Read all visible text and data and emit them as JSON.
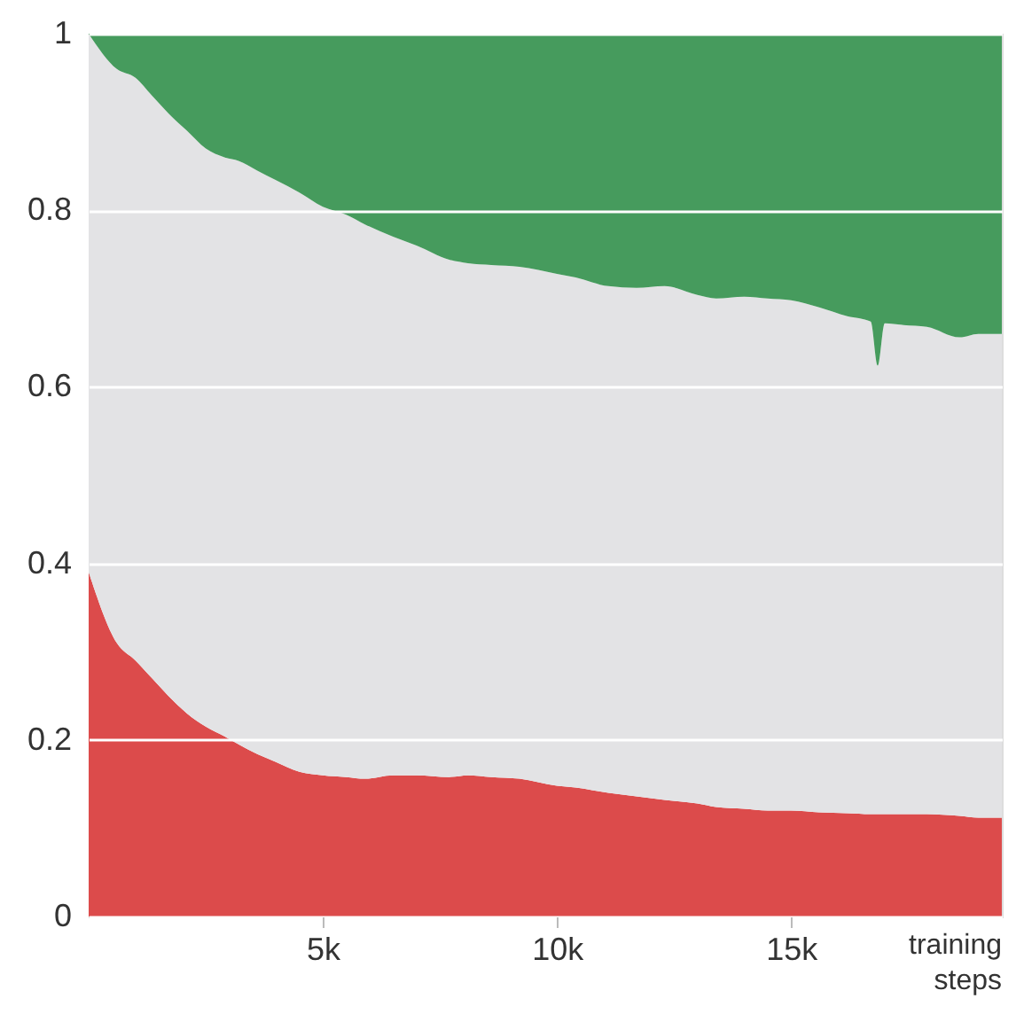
{
  "chart_data": {
    "type": "area",
    "stacked": true,
    "xlabel": "training steps",
    "x": [
      0,
      600,
      1000,
      1350,
      1700,
      2100,
      2500,
      2900,
      3200,
      3600,
      4000,
      4500,
      5000,
      5500,
      5900,
      6500,
      7000,
      7700,
      8100,
      8600,
      9200,
      10000,
      10400,
      11100,
      11700,
      12300,
      13000,
      13400,
      14000,
      14500,
      15000,
      15600,
      16200,
      16700,
      16850,
      17000,
      17400,
      17900,
      18600,
      19000,
      19500
    ],
    "series": [
      {
        "color": "#dc4b4b",
        "values": [
          0.39,
          0.31,
          0.29,
          0.27,
          0.25,
          0.23,
          0.215,
          0.204,
          0.195,
          0.184,
          0.175,
          0.164,
          0.16,
          0.158,
          0.156,
          0.16,
          0.16,
          0.158,
          0.16,
          0.158,
          0.156,
          0.148,
          0.146,
          0.14,
          0.136,
          0.132,
          0.128,
          0.124,
          0.122,
          0.12,
          0.12,
          0.118,
          0.117,
          0.116,
          0.116,
          0.116,
          0.116,
          0.116,
          0.114,
          0.112,
          0.112
        ]
      },
      {
        "color": "#e3e3e5",
        "values": [
          0.61,
          0.65,
          0.66,
          0.66,
          0.66,
          0.66,
          0.655,
          0.656,
          0.661,
          0.661,
          0.659,
          0.656,
          0.644,
          0.637,
          0.628,
          0.61,
          0.6,
          0.586,
          0.58,
          0.58,
          0.58,
          0.58,
          0.578,
          0.574,
          0.576,
          0.582,
          0.576,
          0.576,
          0.58,
          0.58,
          0.578,
          0.572,
          0.563,
          0.558,
          0.508,
          0.556,
          0.554,
          0.552,
          0.542,
          0.548,
          0.548
        ]
      },
      {
        "color": "#469b5d",
        "values": [
          0,
          0.04,
          0.05,
          0.07,
          0.09,
          0.11,
          0.13,
          0.14,
          0.144,
          0.155,
          0.166,
          0.18,
          0.196,
          0.205,
          0.216,
          0.23,
          0.24,
          0.256,
          0.26,
          0.262,
          0.264,
          0.272,
          0.276,
          0.286,
          0.288,
          0.286,
          0.296,
          0.3,
          0.298,
          0.3,
          0.302,
          0.31,
          0.32,
          0.326,
          0.376,
          0.328,
          0.33,
          0.332,
          0.344,
          0.34,
          0.34
        ]
      }
    ],
    "xlim": [
      0,
      19500
    ],
    "ylim": [
      0,
      1
    ],
    "xticks": [
      {
        "value": 5000,
        "label": "5k"
      },
      {
        "value": 10000,
        "label": "10k"
      },
      {
        "value": 15000,
        "label": "15k"
      }
    ],
    "yticks": [
      0,
      {
        "value": 0.2,
        "label": "0.2"
      },
      {
        "value": 0.4,
        "label": "0.4"
      },
      {
        "value": 0.6,
        "label": "0.6"
      },
      {
        "value": 0.8,
        "label": "0.8"
      },
      1
    ],
    "grid": "y"
  }
}
